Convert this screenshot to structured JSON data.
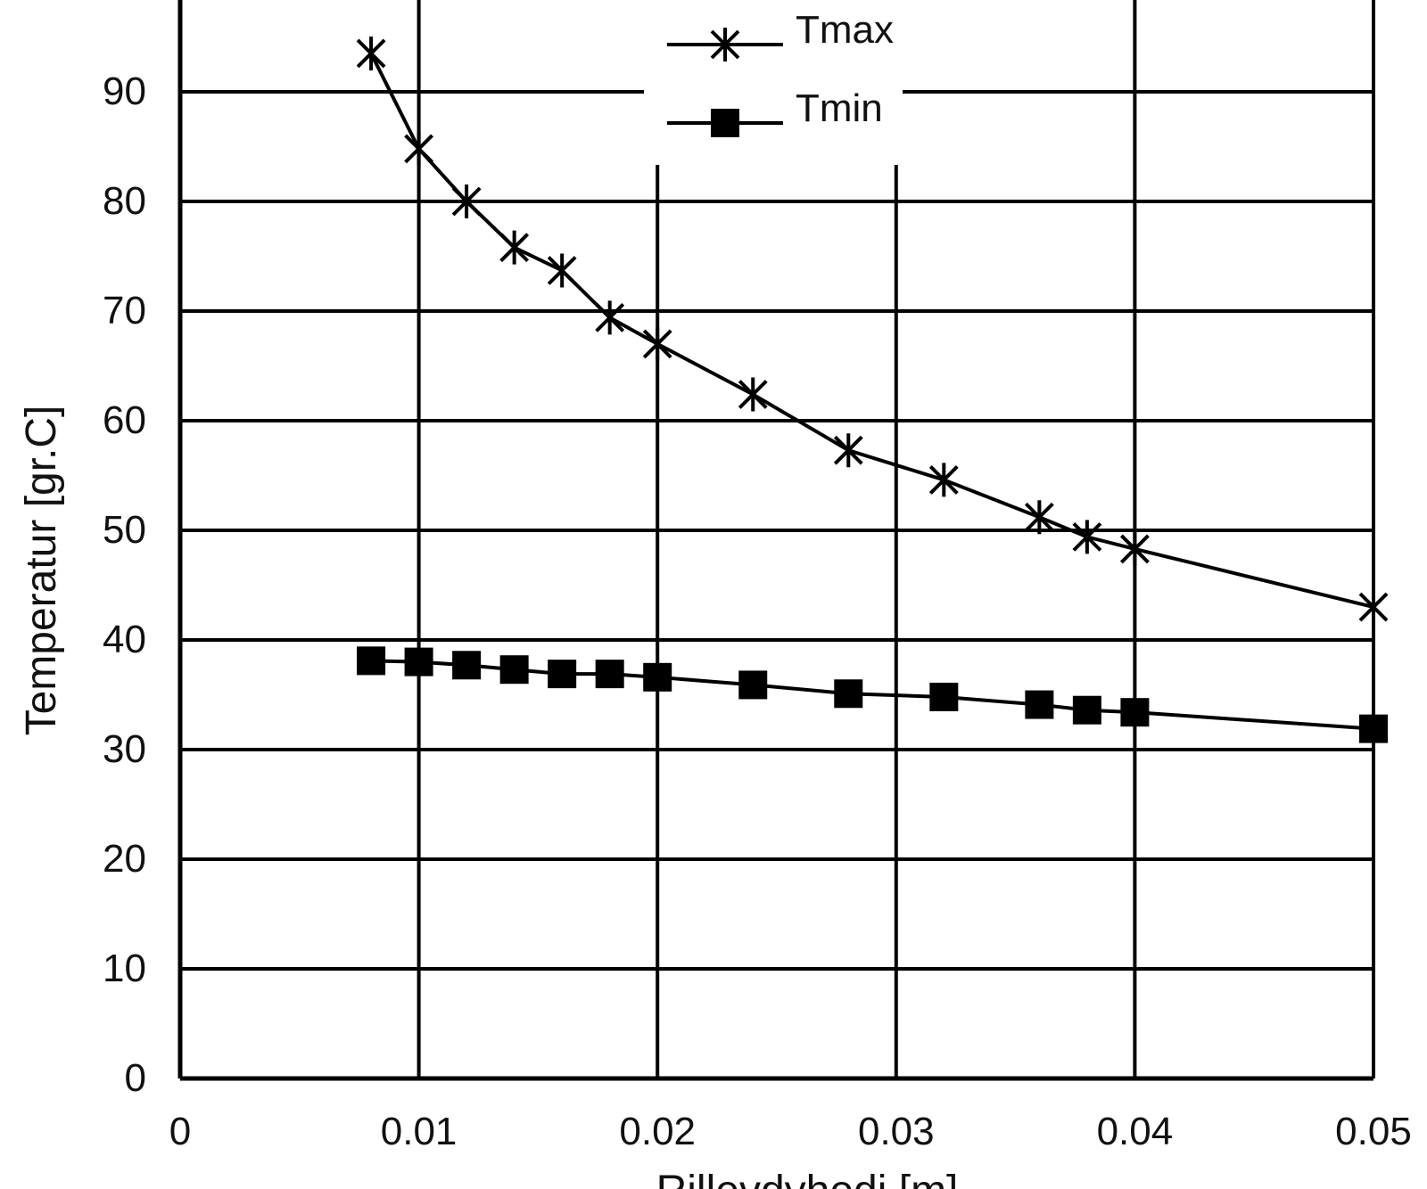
{
  "chart_data": {
    "type": "line",
    "title": "",
    "xlabel": "Rillevdyhedi [m]",
    "ylabel": "Temperatur [gr.C]",
    "xlim": [
      0,
      0.05
    ],
    "ylim": [
      0,
      100
    ],
    "x_ticks": [
      "0",
      "0.01",
      "0.02",
      "0.03",
      "0.04",
      "0.05"
    ],
    "y_ticks": [
      "0",
      "10",
      "20",
      "30",
      "40",
      "50",
      "60",
      "70",
      "80",
      "90"
    ],
    "grid": true,
    "legend": "top-center",
    "series": [
      {
        "name": "Tmax",
        "marker": "x",
        "color": "#000000",
        "points": [
          [
            0.008,
            93.5
          ],
          [
            0.01,
            84.8
          ],
          [
            0.012,
            80.0
          ],
          [
            0.014,
            75.8
          ],
          [
            0.016,
            73.7
          ],
          [
            0.018,
            69.4
          ],
          [
            0.02,
            67.0
          ],
          [
            0.024,
            62.4
          ],
          [
            0.028,
            57.3
          ],
          [
            0.032,
            54.6
          ],
          [
            0.036,
            51.2
          ],
          [
            0.038,
            49.4
          ],
          [
            0.04,
            48.3
          ],
          [
            0.05,
            43.0
          ]
        ]
      },
      {
        "name": "Tmin",
        "marker": "square",
        "color": "#000000",
        "points": [
          [
            0.008,
            38.1
          ],
          [
            0.01,
            38.0
          ],
          [
            0.012,
            37.7
          ],
          [
            0.014,
            37.3
          ],
          [
            0.016,
            36.9
          ],
          [
            0.018,
            36.9
          ],
          [
            0.02,
            36.6
          ],
          [
            0.024,
            35.9
          ],
          [
            0.028,
            35.1
          ],
          [
            0.032,
            34.8
          ],
          [
            0.036,
            34.1
          ],
          [
            0.038,
            33.6
          ],
          [
            0.04,
            33.4
          ],
          [
            0.05,
            31.9
          ]
        ]
      }
    ]
  }
}
